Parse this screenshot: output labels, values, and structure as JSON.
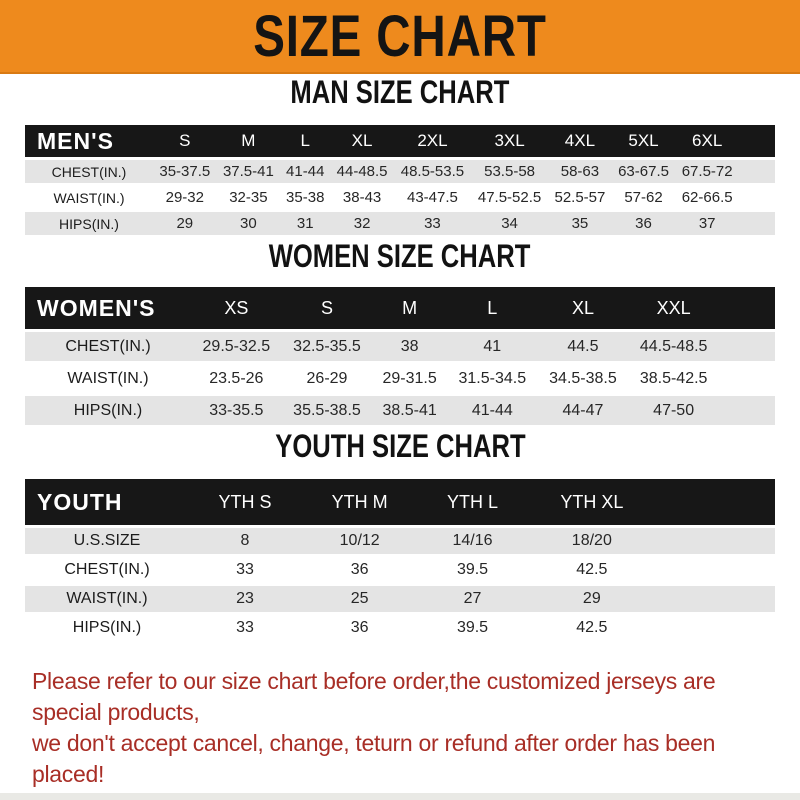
{
  "banner": {
    "title": "SIZE CHART",
    "bg_color": "#ee8a1d",
    "text_color": "#141414"
  },
  "colors": {
    "table_header_bar": "#171717",
    "row_stripe_gray": "#e4e4e4",
    "footer_text": "#a82e26"
  },
  "sections": [
    {
      "heading": "MAN SIZE CHART",
      "table": {
        "header_label": "MEN'S",
        "columns": [
          "S",
          "M",
          "L",
          "XL",
          "2XL",
          "3XL",
          "4XL",
          "5XL",
          "6XL"
        ],
        "rows": [
          {
            "label": "CHEST(IN.)",
            "values": [
              "35-37.5",
              "37.5-41",
              "41-44",
              "44-48.5",
              "48.5-53.5",
              "53.5-58",
              "58-63",
              "63-67.5",
              "67.5-72"
            ]
          },
          {
            "label": "WAIST(IN.)",
            "values": [
              "29-32",
              "32-35",
              "35-38",
              "38-43",
              "43-47.5",
              "47.5-52.5",
              "52.5-57",
              "57-62",
              "62-66.5"
            ]
          },
          {
            "label": "HIPS(IN.)",
            "values": [
              "29",
              "30",
              "31",
              "32",
              "33",
              "34",
              "35",
              "36",
              "37"
            ]
          }
        ]
      }
    },
    {
      "heading": "WOMEN SIZE CHART",
      "table": {
        "header_label": "WOMEN'S",
        "columns": [
          "XS",
          "S",
          "M",
          "L",
          "XL",
          "XXL"
        ],
        "rows": [
          {
            "label": "CHEST(IN.)",
            "values": [
              "29.5-32.5",
              "32.5-35.5",
              "38",
              "41",
              "44.5",
              "44.5-48.5"
            ]
          },
          {
            "label": "WAIST(IN.)",
            "values": [
              "23.5-26",
              "26-29",
              "29-31.5",
              "31.5-34.5",
              "34.5-38.5",
              "38.5-42.5"
            ]
          },
          {
            "label": "HIPS(IN.)",
            "values": [
              "33-35.5",
              "35.5-38.5",
              "38.5-41",
              "41-44",
              "44-47",
              "47-50"
            ]
          }
        ]
      }
    },
    {
      "heading": "YOUTH SIZE CHART",
      "table": {
        "header_label": "YOUTH",
        "columns": [
          "YTH S",
          "YTH M",
          "YTH L",
          "YTH XL"
        ],
        "rows": [
          {
            "label": "U.S.SIZE",
            "values": [
              "8",
              "10/12",
              "14/16",
              "18/20"
            ]
          },
          {
            "label": "CHEST(IN.)",
            "values": [
              "33",
              "36",
              "39.5",
              "42.5"
            ]
          },
          {
            "label": "WAIST(IN.)",
            "values": [
              "23",
              "25",
              "27",
              "29"
            ]
          },
          {
            "label": "HIPS(IN.)",
            "values": [
              "33",
              "36",
              "39.5",
              "42.5"
            ]
          }
        ]
      }
    }
  ],
  "footer": {
    "lines": [
      "Please refer to our size chart before order,the customized jerseys are special products,",
      "we don't accept cancel, change, teturn or refund after order has been placed!"
    ]
  }
}
